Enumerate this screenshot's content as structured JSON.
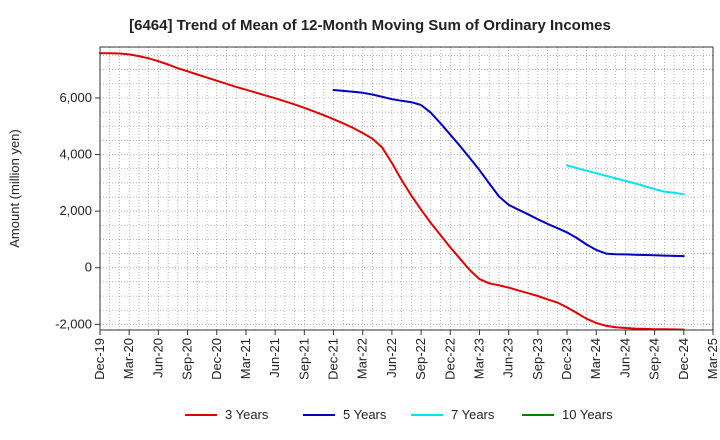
{
  "chart_data": {
    "type": "line",
    "title": "[6464]  Trend of Mean of 12-Month Moving Sum of Ordinary Incomes",
    "xlabel": "",
    "ylabel": "Amount (million yen)",
    "ylim": [
      -2200,
      7800
    ],
    "yticks": [
      -2000,
      0,
      2000,
      4000,
      6000
    ],
    "ytick_labels": [
      "-2,000",
      "0",
      "2,000",
      "4,000",
      "6,000"
    ],
    "x_ticks": [
      "Dec-19",
      "Mar-20",
      "Jun-20",
      "Sep-20",
      "Dec-20",
      "Mar-21",
      "Jun-21",
      "Sep-21",
      "Dec-21",
      "Mar-22",
      "Jun-22",
      "Sep-22",
      "Dec-22",
      "Mar-23",
      "Jun-23",
      "Sep-23",
      "Dec-23",
      "Mar-24",
      "Jun-24",
      "Sep-24",
      "Dec-24",
      "Mar-25"
    ],
    "grid": true,
    "legend_position": "bottom",
    "series": [
      {
        "name": "3 Years",
        "color": "#e00000",
        "x": [
          0,
          1,
          2,
          3,
          4,
          5,
          6,
          7,
          8,
          9,
          10,
          11,
          12,
          13,
          14,
          15,
          16,
          17,
          18,
          19,
          20,
          21,
          22,
          23,
          24,
          25,
          26,
          27,
          28,
          29,
          30,
          31,
          32,
          33,
          34,
          35,
          36,
          37,
          38,
          39,
          40,
          41,
          42,
          43,
          44,
          45,
          46,
          47,
          48,
          49,
          50,
          51,
          52,
          53,
          54,
          55,
          56,
          57,
          58,
          59,
          60
        ],
        "values": [
          7580,
          7580,
          7570,
          7540,
          7480,
          7400,
          7300,
          7180,
          7050,
          6940,
          6830,
          6720,
          6610,
          6500,
          6390,
          6290,
          6190,
          6090,
          5990,
          5880,
          5770,
          5650,
          5520,
          5390,
          5250,
          5100,
          4940,
          4760,
          4560,
          4250,
          3700,
          3100,
          2550,
          2050,
          1580,
          1150,
          720,
          320,
          -80,
          -400,
          -550,
          -620,
          -700,
          -800,
          -900,
          -1000,
          -1120,
          -1230,
          -1400,
          -1600,
          -1800,
          -1950,
          -2050,
          -2100,
          -2130,
          -2150,
          -2160,
          -2170,
          -2175,
          -2180,
          -2185
        ],
        "show_to": 60
      },
      {
        "name": "5 Years",
        "color": "#0000c0",
        "x": [
          24,
          25,
          26,
          27,
          28,
          29,
          30,
          31,
          32,
          33,
          34,
          35,
          36,
          37,
          38,
          39,
          40,
          41,
          42,
          43,
          44,
          45,
          46,
          47,
          48,
          49,
          50,
          51,
          52,
          53,
          54,
          55,
          56,
          57,
          58,
          59,
          60
        ],
        "values": [
          6280,
          6250,
          6220,
          6180,
          6120,
          6040,
          5960,
          5900,
          5850,
          5750,
          5480,
          5100,
          4700,
          4300,
          3880,
          3450,
          2980,
          2520,
          2220,
          2050,
          1890,
          1710,
          1550,
          1400,
          1250,
          1050,
          820,
          630,
          500,
          480,
          470,
          460,
          450,
          440,
          430,
          420,
          410
        ],
        "show_to": 60
      },
      {
        "name": "7 Years",
        "color": "#00e5ee",
        "x": [
          48,
          49,
          50,
          51,
          52,
          53,
          54,
          55,
          56,
          57,
          58,
          59,
          60
        ],
        "values": [
          3620,
          3520,
          3430,
          3340,
          3250,
          3160,
          3070,
          2980,
          2880,
          2780,
          2690,
          2650,
          2600
        ],
        "show_to": 60
      },
      {
        "name": "10 Years",
        "color": "#008000",
        "x": [],
        "values": []
      }
    ]
  }
}
